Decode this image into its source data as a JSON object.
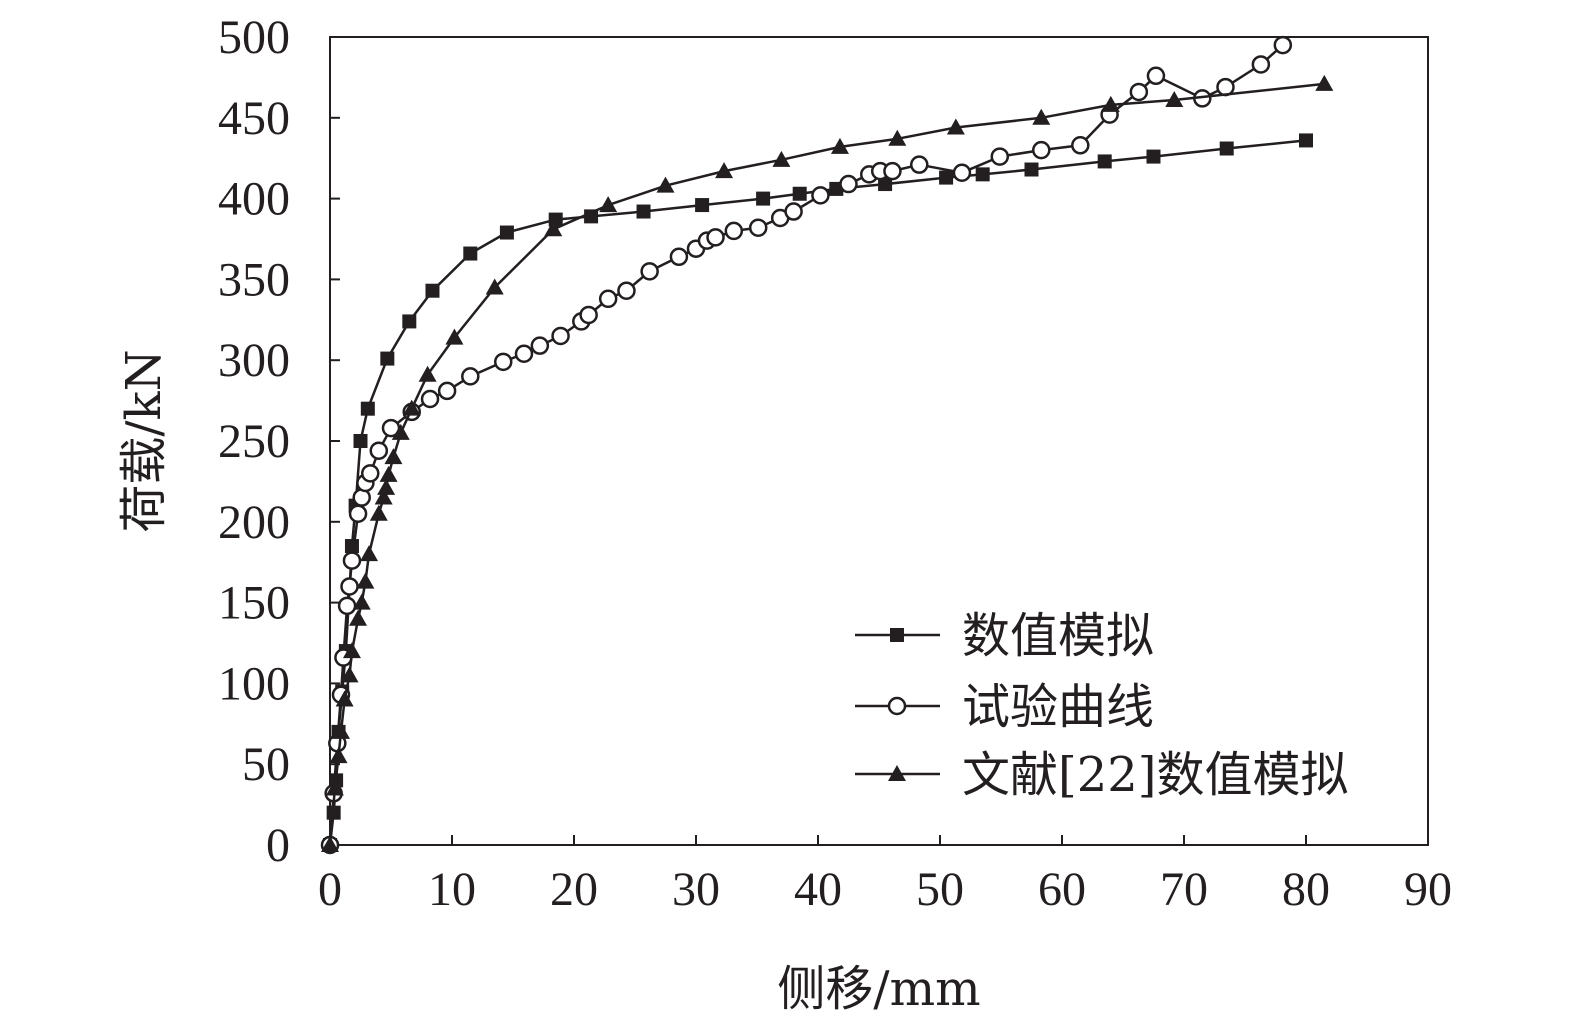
{
  "chart_data": {
    "type": "line",
    "xlabel": "侧移/mm",
    "ylabel": "荷载/kN",
    "xlim": [
      0,
      90
    ],
    "ylim": [
      0,
      500
    ],
    "x_ticks": [
      "0",
      "10",
      "20",
      "30",
      "40",
      "50",
      "60",
      "70",
      "80",
      "90"
    ],
    "y_ticks": [
      "0",
      "50",
      "100",
      "150",
      "200",
      "250",
      "300",
      "350",
      "400",
      "450",
      "500"
    ],
    "grid": false,
    "legend_position": "bottom-right",
    "colors": {
      "line": "#231f20",
      "background": "#ffffff"
    },
    "series": [
      {
        "name": "数值模拟",
        "marker": "square-filled",
        "points": [
          [
            0,
            0
          ],
          [
            0.3,
            20
          ],
          [
            0.5,
            40
          ],
          [
            0.7,
            70
          ],
          [
            1,
            95
          ],
          [
            1.3,
            120
          ],
          [
            1.8,
            185
          ],
          [
            2.1,
            210
          ],
          [
            2.5,
            250
          ],
          [
            3.1,
            270
          ],
          [
            4.7,
            301
          ],
          [
            6.5,
            324
          ],
          [
            8.4,
            343
          ],
          [
            11.5,
            366
          ],
          [
            14.5,
            379
          ],
          [
            18.5,
            387
          ],
          [
            21.4,
            389
          ],
          [
            25.7,
            392
          ],
          [
            30.5,
            396
          ],
          [
            35.5,
            400
          ],
          [
            38.5,
            403
          ],
          [
            41.5,
            406
          ],
          [
            45.5,
            409
          ],
          [
            50.5,
            413
          ],
          [
            53.5,
            415
          ],
          [
            57.5,
            418
          ],
          [
            63.5,
            423
          ],
          [
            67.5,
            426
          ],
          [
            73.5,
            431
          ],
          [
            80,
            436
          ]
        ]
      },
      {
        "name": "试验曲线",
        "marker": "circle-open",
        "points": [
          [
            0,
            0
          ],
          [
            0.3,
            32
          ],
          [
            0.6,
            63
          ],
          [
            0.9,
            93
          ],
          [
            1.1,
            116
          ],
          [
            1.4,
            148
          ],
          [
            1.6,
            160
          ],
          [
            1.8,
            176
          ],
          [
            2.3,
            205
          ],
          [
            2.6,
            215
          ],
          [
            2.9,
            224
          ],
          [
            3.3,
            230
          ],
          [
            4,
            244
          ],
          [
            5,
            258
          ],
          [
            6.7,
            268
          ],
          [
            8.2,
            276
          ],
          [
            9.6,
            281
          ],
          [
            11.5,
            290
          ],
          [
            14.2,
            299
          ],
          [
            15.9,
            304
          ],
          [
            17.2,
            309
          ],
          [
            18.9,
            315
          ],
          [
            20.6,
            324
          ],
          [
            21.2,
            328
          ],
          [
            22.8,
            338
          ],
          [
            24.3,
            343
          ],
          [
            26.2,
            355
          ],
          [
            28.6,
            364
          ],
          [
            30,
            369
          ],
          [
            30.9,
            374
          ],
          [
            31.6,
            376
          ],
          [
            33.1,
            380
          ],
          [
            35.1,
            382
          ],
          [
            36.9,
            388
          ],
          [
            38,
            392
          ],
          [
            40.2,
            402
          ],
          [
            42.5,
            409
          ],
          [
            44.2,
            415
          ],
          [
            45.1,
            417
          ],
          [
            46.1,
            417
          ],
          [
            48.3,
            421
          ],
          [
            51.8,
            416
          ],
          [
            54.9,
            426
          ],
          [
            58.3,
            430
          ],
          [
            61.5,
            433
          ],
          [
            63.9,
            452
          ],
          [
            66.3,
            466
          ],
          [
            67.7,
            476
          ],
          [
            71.5,
            462
          ],
          [
            73.4,
            469
          ],
          [
            76.3,
            483
          ],
          [
            78.1,
            495
          ]
        ]
      },
      {
        "name": "文献[22]数值模拟",
        "marker": "triangle-filled",
        "points": [
          [
            0,
            0
          ],
          [
            0.4,
            35
          ],
          [
            0.7,
            55
          ],
          [
            0.9,
            70
          ],
          [
            1.2,
            90
          ],
          [
            1.6,
            105
          ],
          [
            1.8,
            120
          ],
          [
            2.3,
            140
          ],
          [
            2.6,
            150
          ],
          [
            2.9,
            163
          ],
          [
            3.2,
            180
          ],
          [
            4,
            205
          ],
          [
            4.4,
            215
          ],
          [
            4.6,
            221
          ],
          [
            4.8,
            229
          ],
          [
            5.2,
            240
          ],
          [
            5.8,
            255
          ],
          [
            6.7,
            270
          ],
          [
            8,
            291
          ],
          [
            10.2,
            314
          ],
          [
            13.5,
            345
          ],
          [
            18.3,
            381
          ],
          [
            22.8,
            396
          ],
          [
            27.5,
            408
          ],
          [
            32.3,
            417
          ],
          [
            37,
            424
          ],
          [
            41.8,
            432
          ],
          [
            46.5,
            437
          ],
          [
            51.3,
            444
          ],
          [
            58.3,
            450
          ],
          [
            64,
            458
          ],
          [
            69.2,
            461
          ],
          [
            81.5,
            471
          ]
        ]
      }
    ]
  }
}
